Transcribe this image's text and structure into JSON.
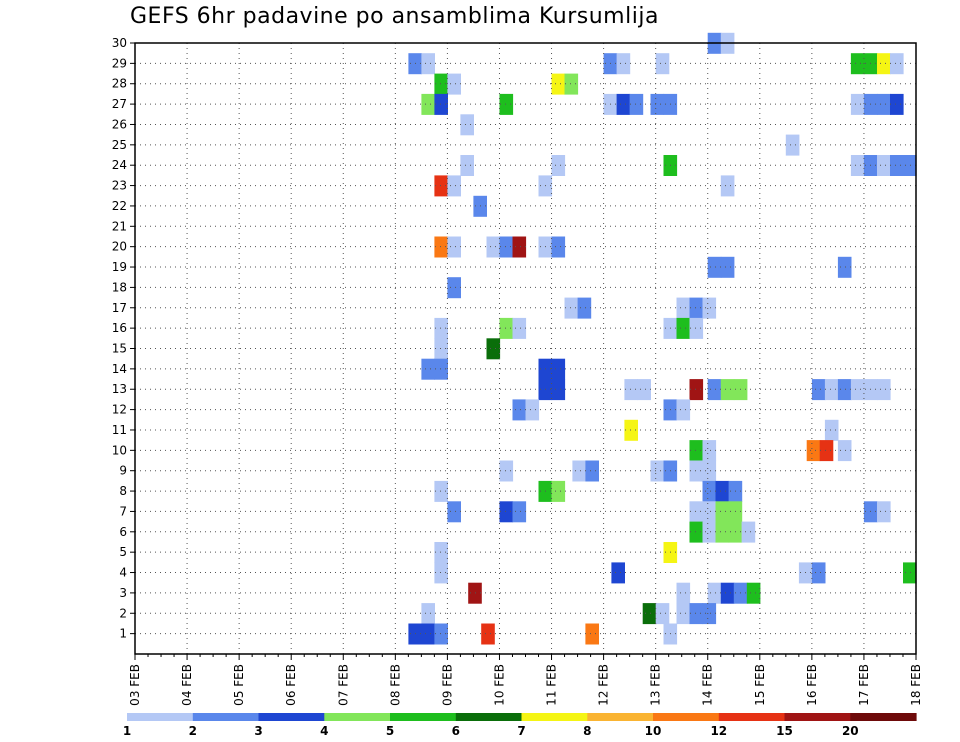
{
  "chart_data": {
    "type": "heatmap",
    "title": "GEFS 6hr padavine po ansamblima Kursumlija",
    "x_ticks": [
      "03 FEB",
      "04 FEB",
      "05 FEB",
      "06 FEB",
      "07 FEB",
      "08 FEB",
      "09 FEB",
      "10 FEB",
      "11 FEB",
      "12 FEB",
      "13 FEB",
      "14 FEB",
      "15 FEB",
      "16 FEB",
      "17 FEB",
      "18 FEB"
    ],
    "x_range_days": [
      0,
      15
    ],
    "y_ticks": [
      "1",
      "2",
      "3",
      "4",
      "5",
      "6",
      "7",
      "8",
      "9",
      "10",
      "11",
      "12",
      "13",
      "14",
      "15",
      "16",
      "17",
      "18",
      "19",
      "20",
      "21",
      "22",
      "23",
      "24",
      "25",
      "26",
      "27",
      "28",
      "29",
      "30"
    ],
    "y_range": [
      0,
      30
    ],
    "grid": true,
    "legend": {
      "placement": "bottom",
      "labels": [
        "1",
        "2",
        "3",
        "4",
        "5",
        "6",
        "7",
        "8",
        "10",
        "12",
        "15",
        "20"
      ],
      "colors": [
        "#b4c8f5",
        "#5a87eb",
        "#1e46d2",
        "#82e65a",
        "#1ebe1e",
        "#0a6e0a",
        "#f5f514",
        "#fab432",
        "#fa7814",
        "#e63214",
        "#a01414",
        "#6e0a0a"
      ]
    },
    "cells": [
      {
        "t": 5.25,
        "y": 29,
        "c": 2
      },
      {
        "t": 5.5,
        "y": 29,
        "c": 1
      },
      {
        "t": 9.0,
        "y": 29,
        "c": 2
      },
      {
        "t": 9.25,
        "y": 29,
        "c": 1
      },
      {
        "t": 10.0,
        "y": 29,
        "c": 1
      },
      {
        "t": 13.75,
        "y": 29,
        "c": 5
      },
      {
        "t": 14.0,
        "y": 29,
        "c": 5
      },
      {
        "t": 14.25,
        "y": 29,
        "c": 7
      },
      {
        "t": 14.5,
        "y": 29,
        "c": 1
      },
      {
        "t": 11.0,
        "y": 30,
        "c": 2
      },
      {
        "t": 11.25,
        "y": 30,
        "c": 1
      },
      {
        "t": 5.75,
        "y": 28,
        "c": 5
      },
      {
        "t": 6.0,
        "y": 28,
        "c": 1
      },
      {
        "t": 8.0,
        "y": 28,
        "c": 7
      },
      {
        "t": 8.25,
        "y": 28,
        "c": 4
      },
      {
        "t": 5.5,
        "y": 27,
        "c": 4
      },
      {
        "t": 5.75,
        "y": 27,
        "c": 3
      },
      {
        "t": 7.0,
        "y": 27,
        "c": 5
      },
      {
        "t": 9.0,
        "y": 27,
        "c": 1
      },
      {
        "t": 9.25,
        "y": 27,
        "c": 3
      },
      {
        "t": 9.5,
        "y": 27,
        "c": 2
      },
      {
        "t": 9.9,
        "y": 27,
        "c": 2
      },
      {
        "t": 10.15,
        "y": 27,
        "c": 2
      },
      {
        "t": 13.75,
        "y": 27,
        "c": 1
      },
      {
        "t": 14.0,
        "y": 27,
        "c": 2
      },
      {
        "t": 14.25,
        "y": 27,
        "c": 2
      },
      {
        "t": 14.5,
        "y": 27,
        "c": 3
      },
      {
        "t": 6.25,
        "y": 26,
        "c": 1
      },
      {
        "t": 12.5,
        "y": 25,
        "c": 1
      },
      {
        "t": 6.25,
        "y": 24,
        "c": 1
      },
      {
        "t": 8.0,
        "y": 24,
        "c": 1
      },
      {
        "t": 10.15,
        "y": 24,
        "c": 5
      },
      {
        "t": 13.75,
        "y": 24,
        "c": 1
      },
      {
        "t": 14.0,
        "y": 24,
        "c": 2
      },
      {
        "t": 14.25,
        "y": 24,
        "c": 1
      },
      {
        "t": 14.5,
        "y": 24,
        "c": 2
      },
      {
        "t": 14.75,
        "y": 24,
        "c": 2
      },
      {
        "t": 5.75,
        "y": 23,
        "c": 10
      },
      {
        "t": 6.0,
        "y": 23,
        "c": 1
      },
      {
        "t": 7.75,
        "y": 23,
        "c": 1
      },
      {
        "t": 11.25,
        "y": 23,
        "c": 1
      },
      {
        "t": 6.5,
        "y": 22,
        "c": 2
      },
      {
        "t": 5.75,
        "y": 20,
        "c": 9
      },
      {
        "t": 6.0,
        "y": 20,
        "c": 1
      },
      {
        "t": 6.75,
        "y": 20,
        "c": 1
      },
      {
        "t": 7.0,
        "y": 20,
        "c": 2
      },
      {
        "t": 7.25,
        "y": 20,
        "c": 11
      },
      {
        "t": 7.75,
        "y": 20,
        "c": 1
      },
      {
        "t": 8.0,
        "y": 20,
        "c": 2
      },
      {
        "t": 11.0,
        "y": 19,
        "c": 2
      },
      {
        "t": 11.25,
        "y": 19,
        "c": 2
      },
      {
        "t": 13.5,
        "y": 19,
        "c": 2
      },
      {
        "t": 6.0,
        "y": 18,
        "c": 2
      },
      {
        "t": 8.25,
        "y": 17,
        "c": 1
      },
      {
        "t": 8.5,
        "y": 17,
        "c": 2
      },
      {
        "t": 10.4,
        "y": 17,
        "c": 1
      },
      {
        "t": 10.65,
        "y": 17,
        "c": 2
      },
      {
        "t": 10.9,
        "y": 17,
        "c": 1
      },
      {
        "t": 5.75,
        "y": 16,
        "c": 1
      },
      {
        "t": 7.0,
        "y": 16,
        "c": 4
      },
      {
        "t": 7.25,
        "y": 16,
        "c": 1
      },
      {
        "t": 10.15,
        "y": 16,
        "c": 1
      },
      {
        "t": 10.4,
        "y": 16,
        "c": 5
      },
      {
        "t": 10.65,
        "y": 16,
        "c": 1
      },
      {
        "t": 5.75,
        "y": 15,
        "c": 1
      },
      {
        "t": 6.75,
        "y": 15,
        "c": 6
      },
      {
        "t": 5.5,
        "y": 14,
        "c": 2
      },
      {
        "t": 5.75,
        "y": 14,
        "c": 2
      },
      {
        "t": 7.75,
        "y": 14,
        "c": 3
      },
      {
        "t": 8.0,
        "y": 14,
        "c": 3
      },
      {
        "t": 7.75,
        "y": 13,
        "c": 3
      },
      {
        "t": 8.0,
        "y": 13,
        "c": 3
      },
      {
        "t": 9.4,
        "y": 13,
        "c": 1
      },
      {
        "t": 9.65,
        "y": 13,
        "c": 1
      },
      {
        "t": 10.65,
        "y": 13,
        "c": 11
      },
      {
        "t": 11.0,
        "y": 13,
        "c": 2
      },
      {
        "t": 11.25,
        "y": 13,
        "c": 4
      },
      {
        "t": 11.5,
        "y": 13,
        "c": 4
      },
      {
        "t": 13.0,
        "y": 13,
        "c": 2
      },
      {
        "t": 13.25,
        "y": 13,
        "c": 1
      },
      {
        "t": 13.5,
        "y": 13,
        "c": 2
      },
      {
        "t": 13.75,
        "y": 13,
        "c": 1
      },
      {
        "t": 14.0,
        "y": 13,
        "c": 1
      },
      {
        "t": 14.25,
        "y": 13,
        "c": 1
      },
      {
        "t": 7.25,
        "y": 12,
        "c": 2
      },
      {
        "t": 7.5,
        "y": 12,
        "c": 1
      },
      {
        "t": 10.15,
        "y": 12,
        "c": 2
      },
      {
        "t": 10.4,
        "y": 12,
        "c": 1
      },
      {
        "t": 9.4,
        "y": 11,
        "c": 7
      },
      {
        "t": 13.25,
        "y": 11,
        "c": 1
      },
      {
        "t": 10.65,
        "y": 10,
        "c": 5
      },
      {
        "t": 10.9,
        "y": 10,
        "c": 1
      },
      {
        "t": 12.9,
        "y": 10,
        "c": 9
      },
      {
        "t": 13.15,
        "y": 10,
        "c": 10
      },
      {
        "t": 13.5,
        "y": 10,
        "c": 1
      },
      {
        "t": 7.0,
        "y": 9,
        "c": 1
      },
      {
        "t": 8.4,
        "y": 9,
        "c": 1
      },
      {
        "t": 8.65,
        "y": 9,
        "c": 2
      },
      {
        "t": 9.9,
        "y": 9,
        "c": 1
      },
      {
        "t": 10.15,
        "y": 9,
        "c": 2
      },
      {
        "t": 10.65,
        "y": 9,
        "c": 1
      },
      {
        "t": 10.9,
        "y": 9,
        "c": 1
      },
      {
        "t": 5.75,
        "y": 8,
        "c": 1
      },
      {
        "t": 7.75,
        "y": 8,
        "c": 5
      },
      {
        "t": 8.0,
        "y": 8,
        "c": 4
      },
      {
        "t": 10.9,
        "y": 8,
        "c": 2
      },
      {
        "t": 11.15,
        "y": 8,
        "c": 3
      },
      {
        "t": 11.4,
        "y": 8,
        "c": 2
      },
      {
        "t": 6.0,
        "y": 7,
        "c": 2
      },
      {
        "t": 7.0,
        "y": 7,
        "c": 3
      },
      {
        "t": 7.25,
        "y": 7,
        "c": 2
      },
      {
        "t": 10.65,
        "y": 7,
        "c": 1
      },
      {
        "t": 10.9,
        "y": 7,
        "c": 1
      },
      {
        "t": 11.15,
        "y": 7,
        "c": 4
      },
      {
        "t": 11.4,
        "y": 7,
        "c": 4
      },
      {
        "t": 14.0,
        "y": 7,
        "c": 2
      },
      {
        "t": 14.25,
        "y": 7,
        "c": 1
      },
      {
        "t": 10.65,
        "y": 6,
        "c": 5
      },
      {
        "t": 10.9,
        "y": 6,
        "c": 1
      },
      {
        "t": 11.15,
        "y": 6,
        "c": 4
      },
      {
        "t": 11.4,
        "y": 6,
        "c": 4
      },
      {
        "t": 11.65,
        "y": 6,
        "c": 1
      },
      {
        "t": 5.75,
        "y": 5,
        "c": 1
      },
      {
        "t": 10.15,
        "y": 5,
        "c": 7
      },
      {
        "t": 5.75,
        "y": 4,
        "c": 1
      },
      {
        "t": 9.15,
        "y": 4,
        "c": 3
      },
      {
        "t": 12.75,
        "y": 4,
        "c": 1
      },
      {
        "t": 13.0,
        "y": 4,
        "c": 2
      },
      {
        "t": 14.75,
        "y": 4,
        "c": 5
      },
      {
        "t": 6.4,
        "y": 3,
        "c": 11
      },
      {
        "t": 10.4,
        "y": 3,
        "c": 1
      },
      {
        "t": 11.0,
        "y": 3,
        "c": 1
      },
      {
        "t": 11.25,
        "y": 3,
        "c": 3
      },
      {
        "t": 11.5,
        "y": 3,
        "c": 2
      },
      {
        "t": 11.75,
        "y": 3,
        "c": 5
      },
      {
        "t": 5.5,
        "y": 2,
        "c": 1
      },
      {
        "t": 9.75,
        "y": 2,
        "c": 6
      },
      {
        "t": 10.0,
        "y": 2,
        "c": 1
      },
      {
        "t": 10.4,
        "y": 2,
        "c": 1
      },
      {
        "t": 10.65,
        "y": 2,
        "c": 2
      },
      {
        "t": 10.9,
        "y": 2,
        "c": 2
      },
      {
        "t": 5.25,
        "y": 1,
        "c": 3
      },
      {
        "t": 5.5,
        "y": 1,
        "c": 3
      },
      {
        "t": 5.75,
        "y": 1,
        "c": 2
      },
      {
        "t": 6.65,
        "y": 1,
        "c": 10
      },
      {
        "t": 8.65,
        "y": 1,
        "c": 9
      },
      {
        "t": 10.15,
        "y": 1,
        "c": 1
      }
    ]
  }
}
